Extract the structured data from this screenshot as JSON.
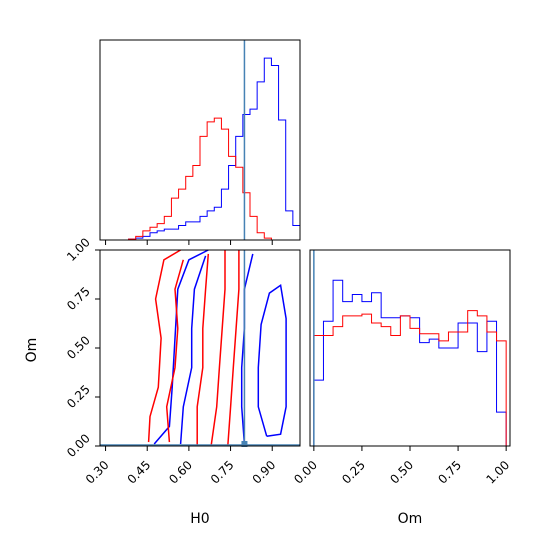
{
  "chart_data": {
    "type": "corner",
    "parameters": [
      "H0",
      "Om"
    ],
    "truth": {
      "H0": 0.8,
      "Om": 0.0
    },
    "colors": {
      "series_a": "#0000ff",
      "series_b": "#ff0000",
      "truth": "#4682b4"
    },
    "grid": false,
    "legend": "none",
    "panels": [
      {
        "id": "H0-marginal",
        "type": "histogram-step",
        "xlim": [
          0.3,
          1.0
        ],
        "x_tick_labels": [],
        "y_tick_labels": [],
        "series": [
          {
            "color": "blue",
            "x": [
              0.325,
              0.35,
              0.375,
              0.4,
              0.425,
              0.45,
              0.475,
              0.5,
              0.525,
              0.55,
              0.575,
              0.6,
              0.625,
              0.65,
              0.675,
              0.7,
              0.725,
              0.75,
              0.775,
              0.8,
              0.825,
              0.85,
              0.875,
              0.9,
              0.925,
              0.95,
              0.975,
              1.0
            ],
            "values": [
              0,
              0,
              0,
              0,
              0.005,
              0.01,
              0.02,
              0.04,
              0.05,
              0.06,
              0.06,
              0.08,
              0.1,
              0.1,
              0.13,
              0.16,
              0.18,
              0.28,
              0.41,
              0.57,
              0.69,
              0.72,
              0.87,
              1.0,
              0.96,
              0.66,
              0.16,
              0.08
            ]
          },
          {
            "color": "red",
            "x": [
              0.325,
              0.35,
              0.375,
              0.4,
              0.425,
              0.45,
              0.475,
              0.5,
              0.525,
              0.55,
              0.575,
              0.6,
              0.625,
              0.65,
              0.675,
              0.7,
              0.725,
              0.75,
              0.775,
              0.8,
              0.825,
              0.85,
              0.875,
              0.9,
              0.925,
              0.95,
              0.975,
              1.0
            ],
            "values": [
              0,
              0,
              0,
              0,
              0.005,
              0.02,
              0.05,
              0.07,
              0.09,
              0.13,
              0.23,
              0.28,
              0.35,
              0.41,
              0.57,
              0.65,
              0.67,
              0.61,
              0.46,
              0.4,
              0.26,
              0.13,
              0.04,
              0.01,
              0,
              0,
              0,
              0
            ]
          }
        ]
      },
      {
        "id": "Om-H0-contour",
        "type": "contour",
        "xlabel": "H0",
        "ylabel": "Om",
        "xlim": [
          0.28,
          1.0
        ],
        "ylim": [
          0.0,
          1.0
        ],
        "x_tick_labels": [
          "0.30",
          "0.45",
          "0.60",
          "0.75",
          "0.90"
        ],
        "y_tick_labels": [
          "0.00",
          "0.25",
          "0.50",
          "0.75",
          "1.00"
        ],
        "series": [
          {
            "color": "blue",
            "levels": [
              [
                [
                  0.475,
                  0.01
                ],
                [
                  0.53,
                  0.1
                ],
                [
                  0.54,
                  0.3
                ],
                [
                  0.55,
                  0.55
                ],
                [
                  0.56,
                  0.8
                ],
                [
                  0.6,
                  0.95
                ],
                [
                  0.67,
                  1.0
                ]
              ],
              [
                [
                  0.57,
                  0.01
                ],
                [
                  0.58,
                  0.2
                ],
                [
                  0.61,
                  0.4
                ],
                [
                  0.61,
                  0.6
                ],
                [
                  0.62,
                  0.8
                ],
                [
                  0.66,
                  0.97
                ]
              ],
              [
                [
                  0.8,
                  0.01
                ],
                [
                  0.79,
                  0.2
                ],
                [
                  0.79,
                  0.4
                ],
                [
                  0.8,
                  0.6
                ],
                [
                  0.8,
                  0.8
                ],
                [
                  0.83,
                  0.98
                ]
              ],
              [
                [
                  0.88,
                  0.05
                ],
                [
                  0.85,
                  0.2
                ],
                [
                  0.85,
                  0.4
                ],
                [
                  0.86,
                  0.62
                ],
                [
                  0.89,
                  0.78
                ],
                [
                  0.93,
                  0.82
                ],
                [
                  0.95,
                  0.65
                ],
                [
                  0.95,
                  0.4
                ],
                [
                  0.95,
                  0.2
                ],
                [
                  0.93,
                  0.06
                ],
                [
                  0.88,
                  0.05
                ]
              ]
            ]
          },
          {
            "color": "red",
            "levels": [
              [
                [
                  0.455,
                  0.02
                ],
                [
                  0.46,
                  0.15
                ],
                [
                  0.49,
                  0.3
                ],
                [
                  0.5,
                  0.55
                ],
                [
                  0.48,
                  0.75
                ],
                [
                  0.51,
                  0.95
                ],
                [
                  0.57,
                  1.0
                ]
              ],
              [
                [
                  0.53,
                  0.02
                ],
                [
                  0.52,
                  0.2
                ],
                [
                  0.55,
                  0.4
                ],
                [
                  0.56,
                  0.6
                ],
                [
                  0.55,
                  0.8
                ],
                [
                  0.58,
                  0.95
                ]
              ],
              [
                [
                  0.63,
                  0.0
                ],
                [
                  0.63,
                  0.2
                ],
                [
                  0.65,
                  0.4
                ],
                [
                  0.65,
                  0.6
                ],
                [
                  0.66,
                  0.8
                ],
                [
                  0.67,
                  0.98
                ]
              ],
              [
                [
                  0.68,
                  0.0
                ],
                [
                  0.7,
                  0.2
                ],
                [
                  0.71,
                  0.4
                ],
                [
                  0.72,
                  0.6
                ],
                [
                  0.73,
                  0.8
                ],
                [
                  0.73,
                  1.0
                ]
              ],
              [
                [
                  0.74,
                  0.0
                ],
                [
                  0.75,
                  0.2
                ],
                [
                  0.76,
                  0.4
                ],
                [
                  0.77,
                  0.6
                ],
                [
                  0.78,
                  0.8
                ],
                [
                  0.78,
                  1.0
                ]
              ]
            ]
          }
        ]
      },
      {
        "id": "Om-marginal",
        "type": "histogram-step",
        "xlabel": "Om",
        "xlim": [
          0.0,
          1.0
        ],
        "x_tick_labels": [
          "0.00",
          "0.25",
          "0.50",
          "0.75",
          "1.00"
        ],
        "y_tick_labels": [],
        "series": [
          {
            "color": "blue",
            "x": [
              0.0,
              0.05,
              0.1,
              0.15,
              0.2,
              0.25,
              0.3,
              0.35,
              0.4,
              0.45,
              0.5,
              0.55,
              0.6,
              0.65,
              0.7,
              0.75,
              0.8,
              0.85,
              0.9,
              0.95,
              1.0
            ],
            "values": [
              0.37,
              0.7,
              0.93,
              0.81,
              0.85,
              0.81,
              0.86,
              0.72,
              0.72,
              0.73,
              0.72,
              0.58,
              0.6,
              0.55,
              0.55,
              0.69,
              0.69,
              0.53,
              0.7,
              0.19,
              0.19
            ]
          },
          {
            "color": "red",
            "x": [
              0.0,
              0.05,
              0.1,
              0.15,
              0.2,
              0.25,
              0.3,
              0.35,
              0.4,
              0.45,
              0.5,
              0.55,
              0.6,
              0.65,
              0.7,
              0.75,
              0.8,
              0.85,
              0.9,
              0.95,
              1.0
            ],
            "values": [
              0.62,
              0.62,
              0.67,
              0.73,
              0.73,
              0.74,
              0.69,
              0.67,
              0.62,
              0.73,
              0.66,
              0.63,
              0.63,
              0.59,
              0.64,
              0.64,
              0.76,
              0.73,
              0.64,
              0.59,
              0.0
            ]
          }
        ]
      }
    ]
  }
}
